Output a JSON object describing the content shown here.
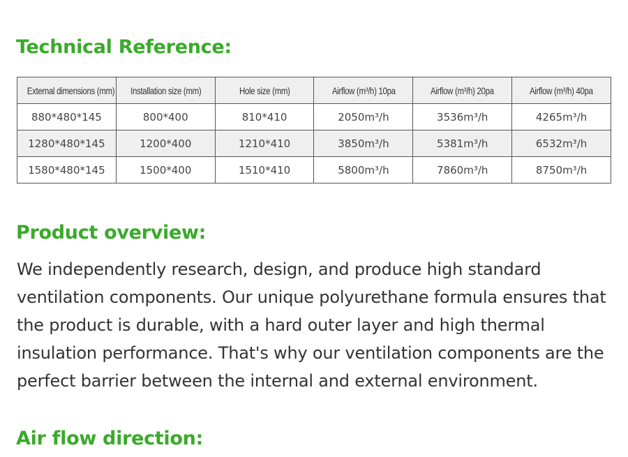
{
  "sections": {
    "technical_title": "Technical Reference:",
    "overview_title": "Product overview:",
    "airflow_title": "Air flow direction:"
  },
  "table": {
    "headers": [
      "External dimensions (mm)",
      "Installation size (mm)",
      "Hole size (mm)",
      "Airflow (m³/h) 10pa",
      "Airflow (m³/h) 20pa",
      "Airflow (m³/h) 40pa"
    ],
    "rows": [
      [
        "880*480*145",
        "800*400",
        "810*410",
        "2050m³/h",
        "3536m³/h",
        "4265m³/h"
      ],
      [
        "1280*480*145",
        "1200*400",
        "1210*410",
        "3850m³/h",
        "5381m³/h",
        "6532m³/h"
      ],
      [
        "1580*480*145",
        "1500*400",
        "1510*410",
        "5800m³/h",
        "7860m³/h",
        "8750m³/h"
      ]
    ]
  },
  "overview_text": "We independently research, design, and produce high standard ventilation components. Our unique polyurethane formula ensures that the product is durable, with a hard outer layer and high thermal insulation performance. That's why our ventilation components are the perfect barrier between the internal and external environment.",
  "colors": {
    "heading": "#3aaa2a",
    "text": "#333333",
    "row_alt": "#efefef"
  }
}
